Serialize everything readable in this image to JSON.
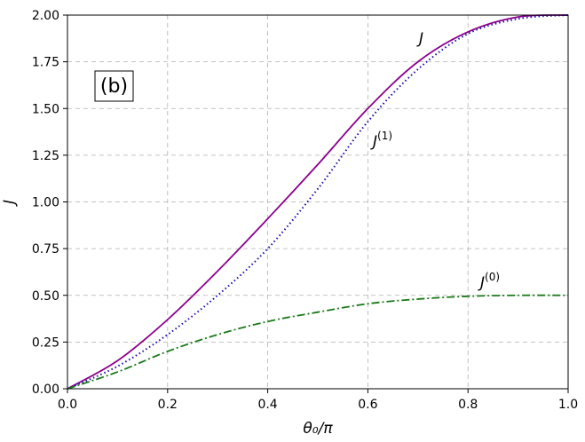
{
  "chart_data": {
    "type": "line",
    "xlabel": "θ₀/π",
    "ylabel": "J",
    "xlim": [
      0.0,
      1.0
    ],
    "ylim": [
      0.0,
      2.0
    ],
    "grid": true,
    "xticks": [
      "0.0",
      "0.2",
      "0.4",
      "0.6",
      "0.8",
      "1.0"
    ],
    "yticks": [
      "0.00",
      "0.25",
      "0.50",
      "0.75",
      "1.00",
      "1.25",
      "1.50",
      "1.75",
      "2.00"
    ],
    "panel_label": "(b)",
    "x": [
      0.0,
      0.1,
      0.2,
      0.3,
      0.4,
      0.5,
      0.6,
      0.7,
      0.8,
      0.9,
      1.0
    ],
    "series": [
      {
        "id": "J",
        "label_base": "J",
        "label_sup": "",
        "color": "#8b008b",
        "style": "solid",
        "values": [
          0.0,
          0.15,
          0.37,
          0.63,
          0.91,
          1.2,
          1.5,
          1.75,
          1.91,
          1.99,
          2.0
        ]
      },
      {
        "id": "J1",
        "label_base": "J",
        "label_sup": "(1)",
        "color": "#1a0dab",
        "style": "dotted",
        "values": [
          0.0,
          0.12,
          0.29,
          0.5,
          0.75,
          1.07,
          1.43,
          1.71,
          1.9,
          1.98,
          2.0
        ]
      },
      {
        "id": "J0",
        "label_base": "J",
        "label_sup": "(0)",
        "color": "#1a7a1a",
        "style": "dashdot",
        "values": [
          0.0,
          0.09,
          0.2,
          0.29,
          0.36,
          0.41,
          0.455,
          0.48,
          0.495,
          0.5,
          0.5
        ]
      }
    ]
  }
}
